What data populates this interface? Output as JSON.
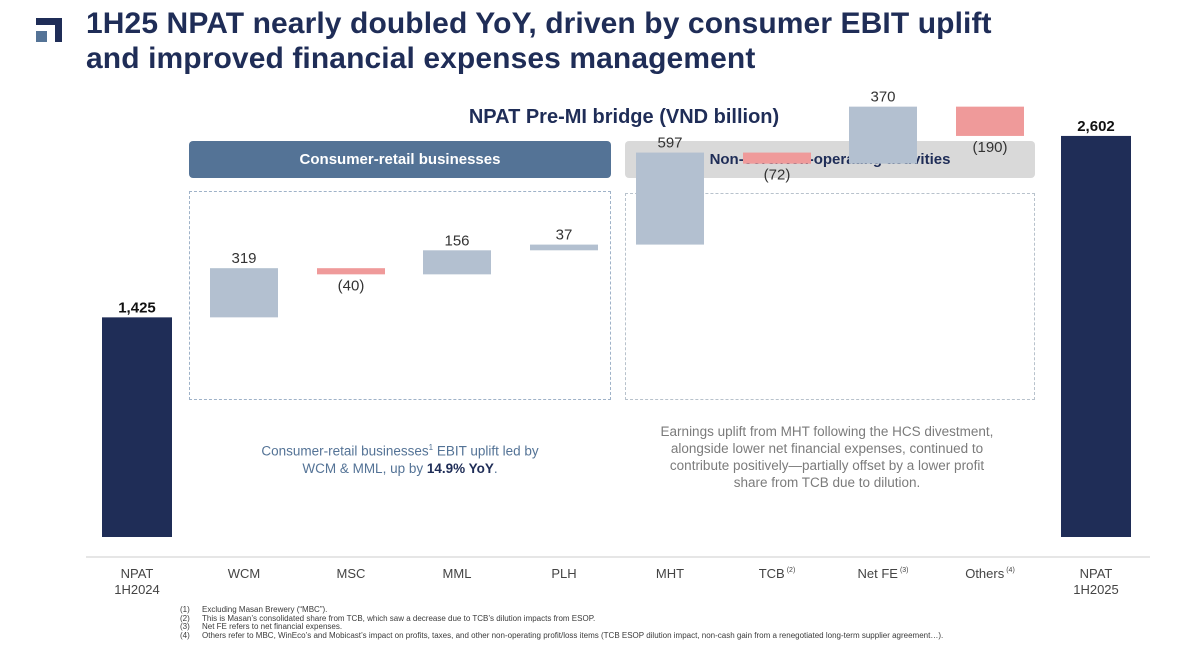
{
  "slide": {
    "title_line1": "1H25 NPAT nearly doubled YoY, driven by consumer EBIT uplift",
    "title_line2": "and improved financial expenses management"
  },
  "groups": {
    "consumer_label": "Consumer-retail businesses",
    "noncore_label": "Non-core/Non-operating activities"
  },
  "notes": {
    "consumer_part1": "Consumer-retail businesses",
    "consumer_sup": "1",
    "consumer_part2": " EBIT uplift led by",
    "consumer_part3": "WCM & MML, up by ",
    "consumer_bold": "14.9% YoY",
    "consumer_end": ".",
    "noncore_line1": "Earnings uplift from MHT following the HCS divestment,",
    "noncore_line2": "alongside lower net financial expenses, continued to",
    "noncore_line3": "contribute positively—partially offset by a lower profit",
    "noncore_line4": "share from TCB due to dilution."
  },
  "colors": {
    "total": "#1f2d57",
    "increase": "#b3c0d0",
    "decrease": "#ef9a9a",
    "text": "#333333",
    "axis": "#cccccc",
    "label": "#444444"
  },
  "chart_data": {
    "type": "waterfall",
    "title": "NPAT Pre-MI bridge (VND billion)",
    "categories": [
      {
        "label": "NPAT\n1H2024",
        "sup": ""
      },
      {
        "label": "WCM",
        "sup": ""
      },
      {
        "label": "MSC",
        "sup": ""
      },
      {
        "label": "MML",
        "sup": ""
      },
      {
        "label": "PLH",
        "sup": ""
      },
      {
        "label": "MHT",
        "sup": ""
      },
      {
        "label": "TCB",
        "sup": "(2)"
      },
      {
        "label": "Net FE",
        "sup": "(3)"
      },
      {
        "label": "Others",
        "sup": "(4)"
      },
      {
        "label": "NPAT\n1H2025",
        "sup": ""
      }
    ],
    "values": [
      1425,
      319,
      -40,
      156,
      37,
      597,
      -72,
      370,
      -190,
      2602
    ],
    "labels": [
      "1,425",
      "319",
      "(40)",
      "156",
      "37",
      "597",
      "(72)",
      "370",
      "(190)",
      "2,602"
    ],
    "kinds": [
      "total",
      "delta",
      "delta",
      "delta",
      "delta",
      "delta",
      "delta",
      "delta",
      "delta",
      "total"
    ],
    "ylim": [
      0,
      2900
    ]
  },
  "footnotes": [
    {
      "num": "(1)",
      "text": "Excluding Masan Brewery (“MBC”)."
    },
    {
      "num": "(2)",
      "text": "This is Masan’s consolidated share from TCB, which saw a decrease due to TCB’s dilution impacts from ESOP."
    },
    {
      "num": "(3)",
      "text": "Net FE refers to net financial expenses."
    },
    {
      "num": "(4)",
      "text": "Others refer to MBC, WinEco’s and Mobicast’s impact on profits, taxes, and other non-operating profit/loss items (TCB ESOP dilution impact, non-cash gain from a renegotiated long-term supplier agreement…)."
    }
  ]
}
